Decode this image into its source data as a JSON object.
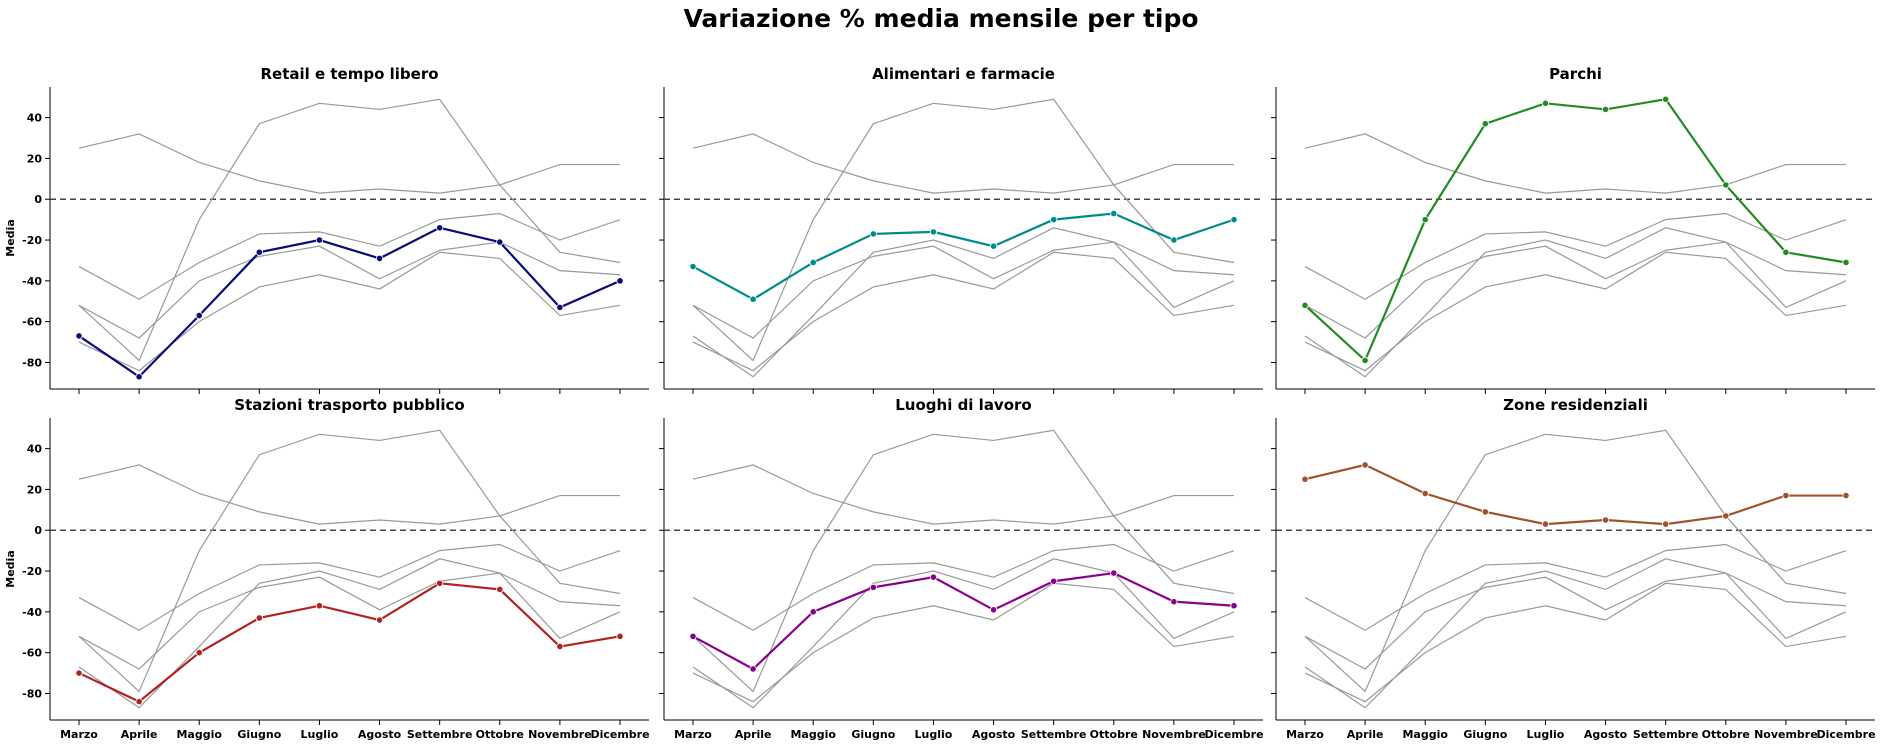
{
  "title": "Variazione % media mensile per tipo",
  "chart_data": {
    "type": "line",
    "title": "Variazione % media mensile per tipo",
    "ylabel": "Media",
    "ylim": [
      -93,
      55
    ],
    "yticks": [
      -80,
      -60,
      -40,
      -20,
      0,
      20,
      40
    ],
    "grid": false,
    "reference_line": 0,
    "months": [
      "Marzo",
      "Aprile",
      "Maggio",
      "Giugno",
      "Luglio",
      "Agosto",
      "Settembre",
      "Ottobre",
      "Novembre",
      "Dicembre"
    ],
    "background_color": "#999999",
    "series": [
      {
        "name": "Retail e tempo libero",
        "color": "#0a0a78",
        "values": [
          -67,
          -87,
          -57,
          -26,
          -20,
          -29,
          -14,
          -21,
          -53,
          -40
        ]
      },
      {
        "name": "Alimentari e farmacie",
        "color": "#008b8b",
        "values": [
          -33,
          -49,
          -31,
          -17,
          -16,
          -23,
          -10,
          -7,
          -20,
          -10
        ]
      },
      {
        "name": "Parchi",
        "color": "#228b22",
        "values": [
          -52,
          -79,
          -10,
          37,
          47,
          44,
          49,
          7,
          -26,
          -31
        ]
      },
      {
        "name": "Stazioni trasporto pubblico",
        "color": "#b22222",
        "values": [
          -70,
          -84,
          -60,
          -43,
          -37,
          -44,
          -26,
          -29,
          -57,
          -52
        ]
      },
      {
        "name": "Luoghi di lavoro",
        "color": "#8b008b",
        "values": [
          -52,
          -68,
          -40,
          -28,
          -23,
          -39,
          -25,
          -21,
          -35,
          -37
        ]
      },
      {
        "name": "Zone residenziali",
        "color": "#a0522d",
        "values": [
          25,
          32,
          18,
          9,
          3,
          5,
          3,
          7,
          17,
          17
        ]
      }
    ]
  }
}
